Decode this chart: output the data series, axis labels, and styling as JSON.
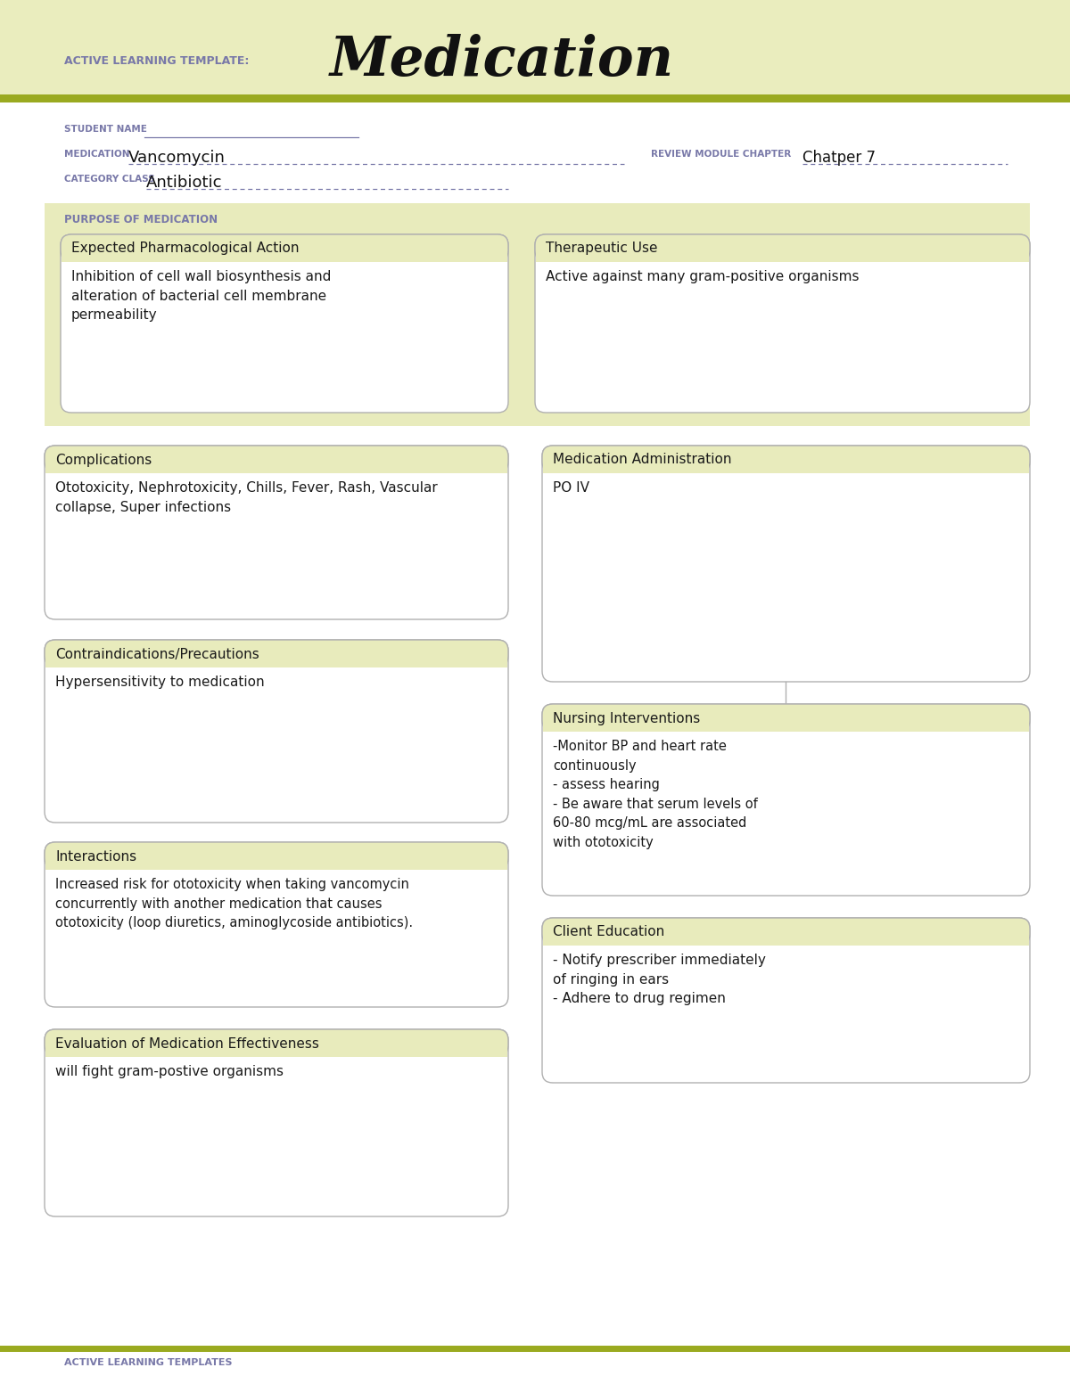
{
  "page_bg": "#ffffff",
  "header_bg": "#eaedbe",
  "olive_line_color": "#9aaa20",
  "header_label": "ACTIVE LEARNING TEMPLATE:",
  "header_title": "Medication",
  "student_label": "STUDENT NAME",
  "medication_label": "MEDICATION",
  "medication_value": "Vancomycin",
  "review_label": "REVIEW MODULE CHAPTER",
  "review_value": "Chatper 7",
  "category_label": "CATEGORY CLASS",
  "category_value": "Antibiotic",
  "purpose_label": "PURPOSE OF MEDICATION",
  "purpose_bg": "#e8ebbc",
  "box_bg": "#f3f5dc",
  "box_bg_white": "#ffffff",
  "box_border": "#b0b0b0",
  "section_header_bg": "#e8ebbc",
  "label_color": "#7878a8",
  "text_color": "#1a1a1a",
  "sections": {
    "expected_pharmacological_action": {
      "title": "Expected Pharmacological Action",
      "content": "Inhibition of cell wall biosynthesis and\nalteration of bacterial cell membrane\npermeability"
    },
    "therapeutic_use": {
      "title": "Therapeutic Use",
      "content": "Active against many gram-positive organisms"
    },
    "complications": {
      "title": "Complications",
      "content": "Ototoxicity, Nephrotoxicity, Chills, Fever, Rash, Vascular\ncollapse, Super infections"
    },
    "medication_administration": {
      "title": "Medication Administration",
      "content": "PO IV"
    },
    "contraindications": {
      "title": "Contraindications/Precautions",
      "content": "Hypersensitivity to medication"
    },
    "nursing_interventions": {
      "title": "Nursing Interventions",
      "content": "-Monitor BP and heart rate\ncontinuously\n- assess hearing\n- Be aware that serum levels of\n60-80 mcg/mL are associated\nwith ototoxicity"
    },
    "interactions": {
      "title": "Interactions",
      "content": "Increased risk for ototoxicity when taking vancomycin\nconcurrently with another medication that causes\nototoxicity (loop diuretics, aminoglycoside antibiotics)."
    },
    "client_education": {
      "title": "Client Education",
      "content": "- Notify prescriber immediately\nof ringing in ears\n- Adhere to drug regimen"
    },
    "evaluation": {
      "title": "Evaluation of Medication Effectiveness",
      "content": "will fight gram-postive organisms"
    }
  },
  "footer_text": "ACTIVE LEARNING TEMPLATES"
}
